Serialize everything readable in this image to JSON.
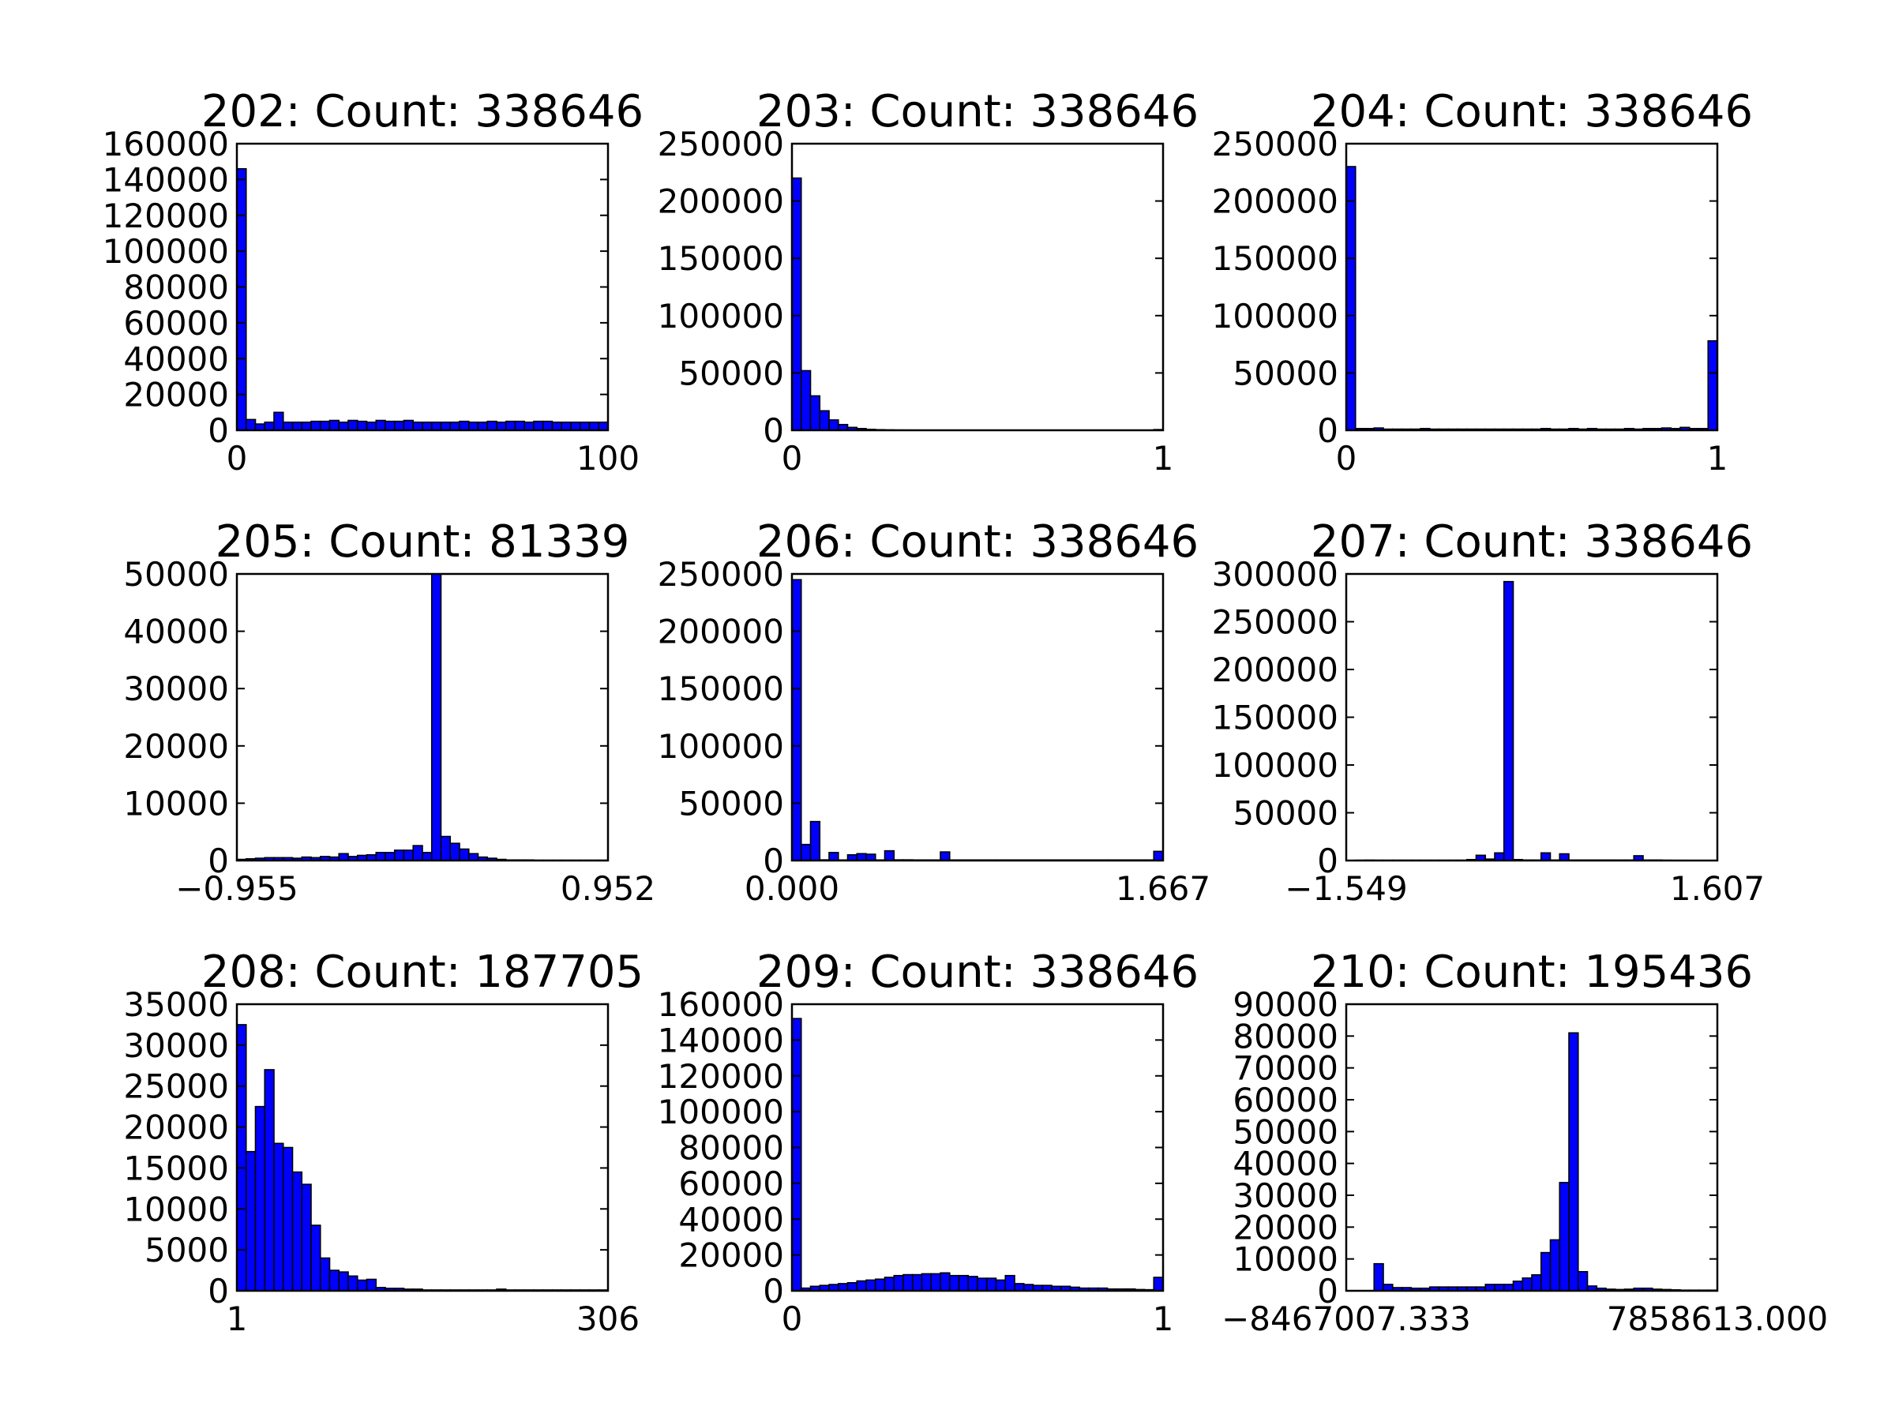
{
  "chart_data": [
    {
      "type": "bar",
      "title": "202: Count: 338646",
      "xlabel": "",
      "ylabel": "",
      "xlim": [
        0,
        100
      ],
      "ylim": [
        0,
        160000
      ],
      "xticks": [
        {
          "v": 0,
          "label": "0"
        },
        {
          "v": 100,
          "label": "100"
        }
      ],
      "yticks": [
        {
          "v": 0,
          "label": "0"
        },
        {
          "v": 20000,
          "label": "20000"
        },
        {
          "v": 40000,
          "label": "40000"
        },
        {
          "v": 60000,
          "label": "60000"
        },
        {
          "v": 80000,
          "label": "80000"
        },
        {
          "v": 100000,
          "label": "100000"
        },
        {
          "v": 120000,
          "label": "120000"
        },
        {
          "v": 140000,
          "label": "140000"
        },
        {
          "v": 160000,
          "label": "160000"
        }
      ],
      "values": [
        146000,
        6000,
        3500,
        4500,
        10000,
        4500,
        4500,
        4500,
        5000,
        5000,
        5500,
        4500,
        5500,
        5000,
        4500,
        5500,
        5000,
        5000,
        5500,
        4500,
        4500,
        4500,
        4500,
        4500,
        5000,
        4500,
        4500,
        5000,
        4500,
        5000,
        5000,
        4500,
        5000,
        5000,
        4500,
        4500,
        4500,
        4500,
        4500,
        4500
      ]
    },
    {
      "type": "bar",
      "title": "203: Count: 338646",
      "xlabel": "",
      "ylabel": "",
      "xlim": [
        0,
        1
      ],
      "ylim": [
        0,
        250000
      ],
      "xticks": [
        {
          "v": 0,
          "label": "0"
        },
        {
          "v": 1,
          "label": "1"
        }
      ],
      "yticks": [
        {
          "v": 0,
          "label": "0"
        },
        {
          "v": 50000,
          "label": "50000"
        },
        {
          "v": 100000,
          "label": "100000"
        },
        {
          "v": 150000,
          "label": "150000"
        },
        {
          "v": 200000,
          "label": "200000"
        },
        {
          "v": 250000,
          "label": "250000"
        }
      ],
      "values": [
        220000,
        52000,
        30000,
        17000,
        9000,
        5000,
        2500,
        1500,
        800,
        500,
        300,
        200,
        150,
        100,
        100,
        80,
        80,
        60,
        60,
        50,
        50,
        50,
        40,
        40,
        40,
        30,
        30,
        30,
        30,
        30,
        30,
        30,
        30,
        30,
        30,
        30,
        30,
        30,
        30,
        600
      ]
    },
    {
      "type": "bar",
      "title": "204: Count: 338646",
      "xlabel": "",
      "ylabel": "",
      "xlim": [
        0,
        1
      ],
      "ylim": [
        0,
        250000
      ],
      "xticks": [
        {
          "v": 0,
          "label": "0"
        },
        {
          "v": 1,
          "label": "1"
        }
      ],
      "yticks": [
        {
          "v": 0,
          "label": "0"
        },
        {
          "v": 50000,
          "label": "50000"
        },
        {
          "v": 100000,
          "label": "100000"
        },
        {
          "v": 150000,
          "label": "150000"
        },
        {
          "v": 200000,
          "label": "200000"
        },
        {
          "v": 250000,
          "label": "250000"
        }
      ],
      "values": [
        230000,
        1500,
        1500,
        2000,
        1000,
        1000,
        1000,
        1000,
        1500,
        1000,
        1000,
        1000,
        1000,
        1000,
        1000,
        1000,
        1000,
        1000,
        1000,
        1000,
        1000,
        1500,
        1000,
        1000,
        1500,
        1000,
        1500,
        1000,
        1000,
        1000,
        1500,
        1000,
        1500,
        1500,
        2000,
        1500,
        2500,
        1500,
        1500,
        78000
      ]
    },
    {
      "type": "bar",
      "title": "205: Count: 81339",
      "xlabel": "",
      "ylabel": "",
      "xlim": [
        -0.955,
        0.952
      ],
      "ylim": [
        0,
        50000
      ],
      "xticks": [
        {
          "v": -0.955,
          "label": "−0.955"
        },
        {
          "v": 0.952,
          "label": "0.952"
        }
      ],
      "yticks": [
        {
          "v": 0,
          "label": "0"
        },
        {
          "v": 10000,
          "label": "10000"
        },
        {
          "v": 20000,
          "label": "20000"
        },
        {
          "v": 30000,
          "label": "30000"
        },
        {
          "v": 40000,
          "label": "40000"
        },
        {
          "v": 50000,
          "label": "50000"
        }
      ],
      "values": [
        200,
        300,
        400,
        500,
        500,
        500,
        400,
        600,
        500,
        700,
        600,
        1200,
        700,
        900,
        1000,
        1400,
        1400,
        1800,
        1800,
        2600,
        1400,
        50000,
        4200,
        3000,
        2000,
        1200,
        600,
        400,
        200,
        100,
        100,
        100,
        50,
        50,
        50,
        50,
        50,
        50,
        50,
        50
      ]
    },
    {
      "type": "bar",
      "title": "206: Count: 338646",
      "xlabel": "",
      "ylabel": "",
      "xlim": [
        0.0,
        1.667
      ],
      "ylim": [
        0,
        250000
      ],
      "xticks": [
        {
          "v": 0.0,
          "label": "0.000"
        },
        {
          "v": 1.667,
          "label": "1.667"
        }
      ],
      "yticks": [
        {
          "v": 0,
          "label": "0"
        },
        {
          "v": 50000,
          "label": "50000"
        },
        {
          "v": 100000,
          "label": "100000"
        },
        {
          "v": 150000,
          "label": "150000"
        },
        {
          "v": 200000,
          "label": "200000"
        },
        {
          "v": 250000,
          "label": "250000"
        }
      ],
      "values": [
        245000,
        14000,
        34000,
        600,
        7000,
        500,
        5000,
        6000,
        5500,
        500,
        8500,
        600,
        600,
        500,
        500,
        500,
        7500,
        500,
        500,
        500,
        500,
        500,
        500,
        500,
        500,
        500,
        500,
        500,
        500,
        500,
        500,
        500,
        500,
        500,
        500,
        500,
        500,
        500,
        500,
        8000
      ]
    },
    {
      "type": "bar",
      "title": "207: Count: 338646",
      "xlabel": "",
      "ylabel": "",
      "xlim": [
        -1.549,
        1.607
      ],
      "ylim": [
        0,
        300000
      ],
      "xticks": [
        {
          "v": -1.549,
          "label": "−1.549"
        },
        {
          "v": 1.607,
          "label": "1.607"
        }
      ],
      "yticks": [
        {
          "v": 0,
          "label": "0"
        },
        {
          "v": 50000,
          "label": "50000"
        },
        {
          "v": 100000,
          "label": "100000"
        },
        {
          "v": 150000,
          "label": "150000"
        },
        {
          "v": 200000,
          "label": "200000"
        },
        {
          "v": 250000,
          "label": "250000"
        },
        {
          "v": 300000,
          "label": "300000"
        }
      ],
      "values": [
        100,
        300,
        400,
        300,
        300,
        300,
        300,
        300,
        300,
        300,
        300,
        300,
        300,
        1000,
        5500,
        1500,
        8000,
        292000,
        1000,
        500,
        500,
        8000,
        500,
        7000,
        500,
        500,
        500,
        500,
        500,
        500,
        500,
        5000,
        500,
        500,
        300,
        200,
        100,
        100,
        100,
        100
      ]
    },
    {
      "type": "bar",
      "title": "208: Count: 187705",
      "xlabel": "",
      "ylabel": "",
      "xlim": [
        1,
        306
      ],
      "ylim": [
        0,
        35000
      ],
      "xticks": [
        {
          "v": 1,
          "label": "1"
        },
        {
          "v": 306,
          "label": "306"
        }
      ],
      "yticks": [
        {
          "v": 0,
          "label": "0"
        },
        {
          "v": 5000,
          "label": "5000"
        },
        {
          "v": 10000,
          "label": "10000"
        },
        {
          "v": 15000,
          "label": "15000"
        },
        {
          "v": 20000,
          "label": "20000"
        },
        {
          "v": 25000,
          "label": "25000"
        },
        {
          "v": 30000,
          "label": "30000"
        },
        {
          "v": 35000,
          "label": "35000"
        }
      ],
      "values": [
        32500,
        17000,
        22500,
        27000,
        18000,
        17500,
        14500,
        13000,
        8000,
        4000,
        2500,
        2300,
        1800,
        1300,
        1400,
        400,
        300,
        300,
        200,
        200,
        100,
        100,
        100,
        100,
        100,
        100,
        100,
        100,
        200,
        100,
        100,
        100,
        100,
        100,
        100,
        100,
        100,
        100,
        100,
        100
      ]
    },
    {
      "type": "bar",
      "title": "209: Count: 338646",
      "xlabel": "",
      "ylabel": "",
      "xlim": [
        0,
        1
      ],
      "ylim": [
        0,
        160000
      ],
      "xticks": [
        {
          "v": 0,
          "label": "0"
        },
        {
          "v": 1,
          "label": "1"
        }
      ],
      "yticks": [
        {
          "v": 0,
          "label": "0"
        },
        {
          "v": 20000,
          "label": "20000"
        },
        {
          "v": 40000,
          "label": "40000"
        },
        {
          "v": 60000,
          "label": "60000"
        },
        {
          "v": 80000,
          "label": "80000"
        },
        {
          "v": 100000,
          "label": "100000"
        },
        {
          "v": 120000,
          "label": "120000"
        },
        {
          "v": 140000,
          "label": "140000"
        },
        {
          "v": 160000,
          "label": "160000"
        }
      ],
      "values": [
        152000,
        1500,
        2500,
        3000,
        3500,
        4000,
        4500,
        5500,
        6000,
        6500,
        7500,
        8500,
        9000,
        9000,
        9500,
        9500,
        10000,
        8500,
        8500,
        8000,
        7000,
        7000,
        6000,
        8500,
        4000,
        3500,
        3000,
        3000,
        2500,
        2500,
        2000,
        1500,
        1500,
        1500,
        1000,
        1000,
        1000,
        700,
        600,
        7500
      ]
    },
    {
      "type": "bar",
      "title": "210: Count: 195436",
      "xlabel": "",
      "ylabel": "",
      "xlim": [
        -8467007.333,
        7858613.0
      ],
      "ylim": [
        0,
        90000
      ],
      "xticks": [
        {
          "v": -8467007.333,
          "label": "−8467007.333"
        },
        {
          "v": 7858613.0,
          "label": "7858613.000"
        }
      ],
      "yticks": [
        {
          "v": 0,
          "label": "0"
        },
        {
          "v": 10000,
          "label": "10000"
        },
        {
          "v": 20000,
          "label": "20000"
        },
        {
          "v": 30000,
          "label": "30000"
        },
        {
          "v": 40000,
          "label": "40000"
        },
        {
          "v": 50000,
          "label": "50000"
        },
        {
          "v": 60000,
          "label": "60000"
        },
        {
          "v": 70000,
          "label": "70000"
        },
        {
          "v": 80000,
          "label": "80000"
        },
        {
          "v": 90000,
          "label": "90000"
        }
      ],
      "values": [
        0,
        0,
        0,
        8500,
        2000,
        1000,
        1000,
        800,
        800,
        1200,
        1200,
        1200,
        1200,
        1200,
        1200,
        2000,
        2000,
        2000,
        3000,
        4000,
        5000,
        12000,
        16000,
        34000,
        81000,
        6000,
        1500,
        800,
        500,
        400,
        500,
        800,
        800,
        500,
        400,
        300,
        200,
        200,
        200,
        200
      ]
    }
  ]
}
